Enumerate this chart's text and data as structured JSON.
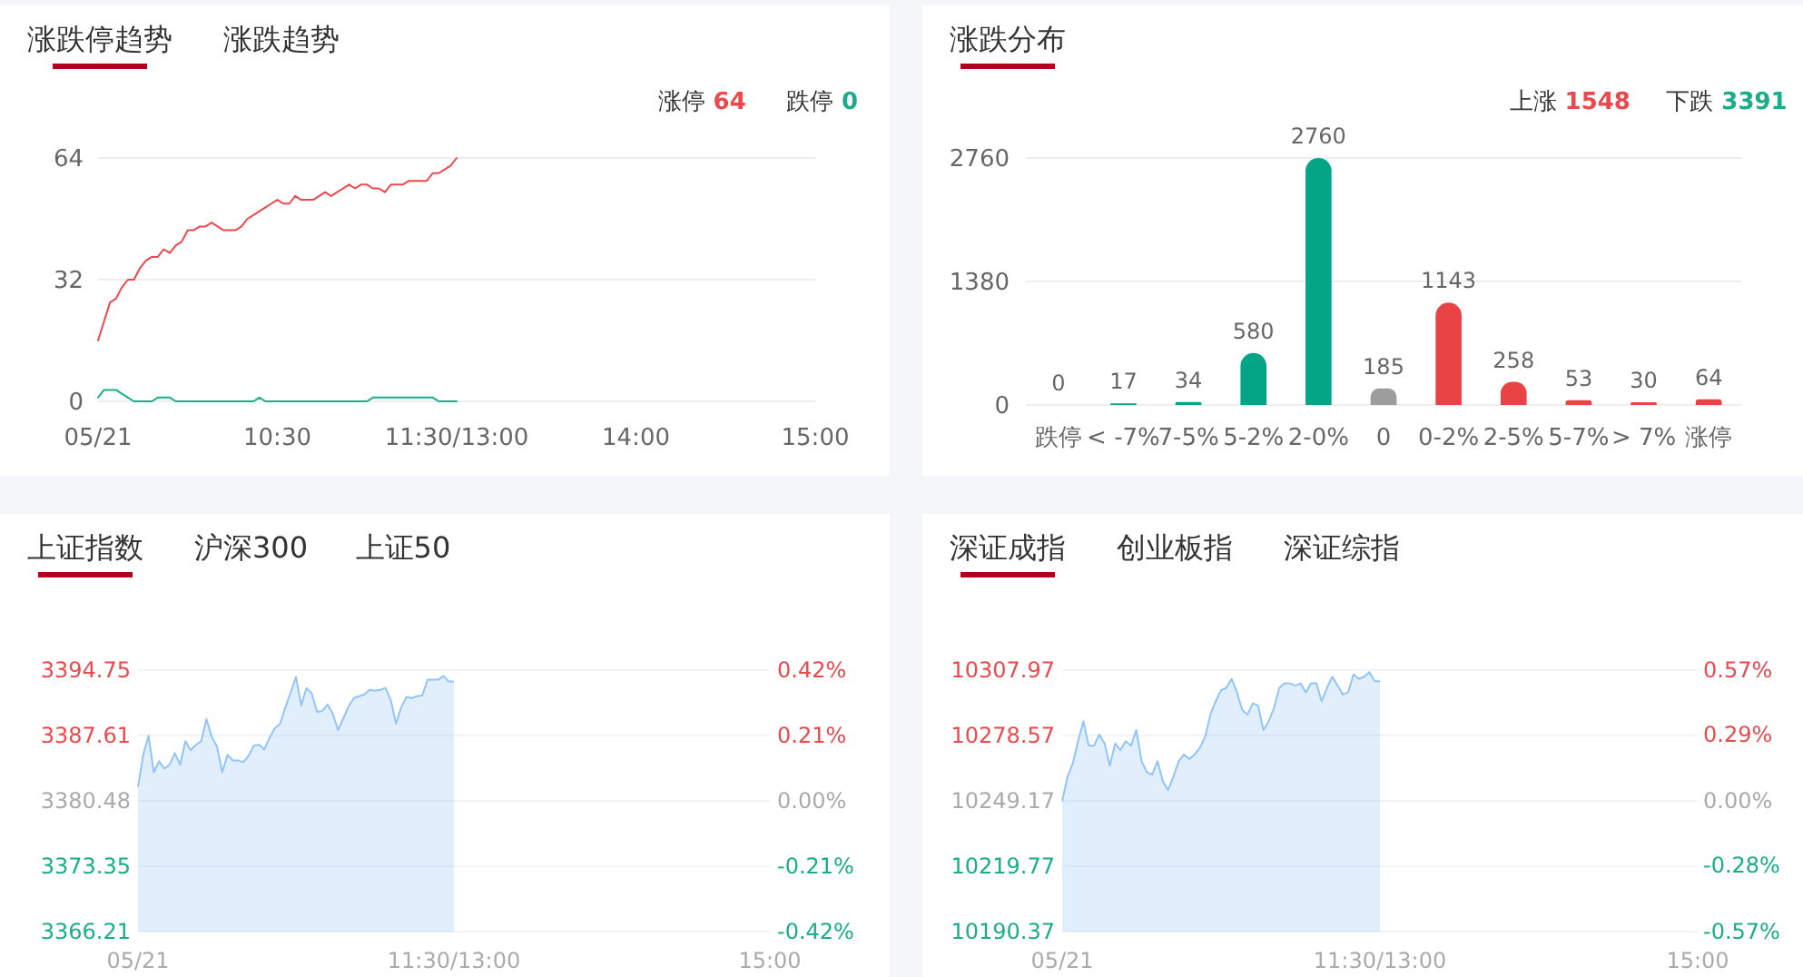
{
  "chart_data": [
    {
      "type": "line",
      "title": "涨跌停趋势",
      "annotations": [
        "涨跌趋势"
      ],
      "categories": [
        "05/21",
        null,
        null,
        null,
        null,
        null,
        null,
        null,
        null,
        null,
        null,
        null,
        null,
        null,
        null,
        null,
        null,
        null,
        null,
        null,
        null,
        null,
        null,
        null,
        null,
        null,
        null,
        null,
        null,
        null,
        "10:30",
        null,
        null,
        null,
        null,
        null,
        null,
        null,
        null,
        null,
        null,
        null,
        null,
        null,
        null,
        null,
        null,
        null,
        null,
        null,
        null,
        null,
        null,
        null,
        null,
        null,
        null,
        null,
        null,
        null,
        "11:30/13:00",
        null,
        null,
        null,
        null,
        null,
        null,
        null,
        null,
        null,
        null,
        null,
        null,
        null,
        null,
        null,
        null,
        null,
        null,
        null,
        null,
        null,
        null,
        null,
        null,
        null,
        null,
        null,
        null,
        null,
        "14:00",
        null,
        null,
        null,
        null,
        null,
        null,
        null,
        null,
        null,
        null,
        null,
        null,
        null,
        null,
        null,
        null,
        null,
        null,
        null,
        null,
        null,
        null,
        null,
        null,
        null,
        null,
        null,
        null,
        null,
        "15:00"
      ],
      "ylim": [
        0,
        64
      ],
      "yticks": [
        0,
        32,
        64
      ],
      "grid": "y",
      "legend": "top right",
      "series": [
        {
          "name": "涨停 64",
          "color": "#ee474c",
          "values": [
            16,
            21,
            26,
            27,
            30,
            32,
            32,
            35,
            37,
            38,
            38,
            40,
            39,
            41,
            42,
            45,
            45,
            46,
            46,
            47,
            46,
            45,
            45,
            45,
            46,
            48,
            49,
            50,
            51,
            52,
            53,
            52,
            52,
            54,
            53,
            53,
            53,
            54,
            55,
            54,
            55,
            56,
            57,
            56,
            57,
            57,
            56,
            56,
            55,
            57,
            57,
            57,
            58,
            58,
            58,
            58,
            60,
            60,
            61,
            62,
            64,
            null,
            null,
            null,
            null,
            null,
            null,
            null,
            null,
            null,
            null,
            null,
            null,
            null,
            null,
            null,
            null,
            null,
            null,
            null,
            null,
            null,
            null,
            null,
            null,
            null,
            null,
            null,
            null,
            null,
            null,
            null,
            null,
            null,
            null,
            null,
            null,
            null,
            null,
            null,
            null,
            null,
            null,
            null,
            null,
            null,
            null,
            null,
            null,
            null,
            null,
            null,
            null,
            null,
            null,
            null,
            null,
            null,
            null,
            null,
            null
          ]
        },
        {
          "name": "跌停 0",
          "color": "#1aad8a",
          "values": [
            1,
            3,
            3,
            3,
            2,
            1,
            0,
            0,
            0,
            0,
            1,
            1,
            1,
            0,
            0,
            0,
            0,
            0,
            0,
            0,
            0,
            0,
            0,
            0,
            0,
            0,
            0,
            1,
            0,
            0,
            0,
            0,
            0,
            0,
            0,
            0,
            0,
            0,
            0,
            0,
            0,
            0,
            0,
            0,
            0,
            0,
            1,
            1,
            1,
            1,
            1,
            1,
            1,
            1,
            1,
            1,
            1,
            0,
            0,
            0,
            0,
            null,
            null,
            null,
            null,
            null,
            null,
            null,
            null,
            null,
            null,
            null,
            null,
            null,
            null,
            null,
            null,
            null,
            null,
            null,
            null,
            null,
            null,
            null,
            null,
            null,
            null,
            null,
            null,
            null,
            null,
            null,
            null,
            null,
            null,
            null,
            null,
            null,
            null,
            null,
            null,
            null,
            null,
            null,
            null,
            null,
            null,
            null,
            null,
            null,
            null,
            null,
            null,
            null,
            null,
            null,
            null,
            null,
            null,
            null,
            null
          ]
        }
      ]
    },
    {
      "type": "bar",
      "title": "涨跌分布",
      "annotations": [
        "上涨 1548",
        "下跌 3391"
      ],
      "categories": [
        "跌停",
        "< -7%",
        "7-5%",
        "5-2%",
        "2-0%",
        "0",
        "0-2%",
        "2-5%",
        "5-7%",
        "> 7%",
        "涨停"
      ],
      "ylim": [
        0,
        2760
      ],
      "yticks": [
        0,
        1380,
        2760
      ],
      "grid": "y",
      "data_labels": true,
      "values": [
        0,
        17,
        34,
        580,
        2760,
        185,
        1143,
        258,
        53,
        30,
        64
      ],
      "colors": [
        "#04a586",
        "#04a586",
        "#04a586",
        "#04a586",
        "#04a586",
        "#9d9d9d",
        "#e84345",
        "#e84345",
        "#e84345",
        "#e84345",
        "#e84345"
      ]
    },
    {
      "type": "area",
      "title": "上证指数",
      "annotations": [
        "沪深300",
        "上证50"
      ],
      "categories": [
        "05/21",
        null,
        null,
        null,
        null,
        null,
        null,
        null,
        null,
        null,
        null,
        null,
        null,
        null,
        null,
        null,
        null,
        null,
        null,
        null,
        null,
        null,
        null,
        null,
        null,
        null,
        null,
        null,
        null,
        null,
        null,
        null,
        null,
        null,
        null,
        null,
        null,
        null,
        null,
        null,
        null,
        null,
        null,
        null,
        null,
        null,
        null,
        null,
        null,
        null,
        null,
        null,
        null,
        null,
        null,
        null,
        null,
        null,
        null,
        null,
        "11:30/13:00",
        null,
        null,
        null,
        null,
        null,
        null,
        null,
        null,
        null,
        null,
        null,
        null,
        null,
        null,
        null,
        null,
        null,
        null,
        null,
        null,
        null,
        null,
        null,
        null,
        null,
        null,
        null,
        null,
        null,
        null,
        null,
        null,
        null,
        null,
        null,
        null,
        null,
        null,
        null,
        null,
        null,
        null,
        null,
        null,
        null,
        null,
        null,
        null,
        null,
        null,
        null,
        null,
        null,
        null,
        null,
        null,
        null,
        null,
        null,
        "15:00"
      ],
      "ylim": [
        3366.21,
        3394.75
      ],
      "yticks": [
        3366.21,
        3373.35,
        3380.48,
        3387.61,
        3394.75
      ],
      "y2lim": [
        -0.42,
        0.42
      ],
      "y2ticks": [
        {
          "value": -0.42,
          "label": "-0.42%"
        },
        {
          "value": -0.21,
          "label": "-0.21%"
        },
        {
          "value": 0,
          "label": "0.00%"
        },
        {
          "value": 0.21,
          "label": "0.21%"
        },
        {
          "value": 0.42,
          "label": "0.42%"
        }
      ],
      "grid": "y",
      "series": [
        {
          "color": "#93c4f8",
          "values": [
            3382.0,
            3385.5,
            3387.6,
            3383.6,
            3384.8,
            3384.0,
            3384.4,
            3385.7,
            3384.4,
            3387.0,
            3386.0,
            3386.6,
            3387.0,
            3389.4,
            3387.5,
            3386.4,
            3383.6,
            3385.5,
            3384.9,
            3384.9,
            3384.7,
            3385.4,
            3386.5,
            3386.6,
            3386.1,
            3387.4,
            3388.4,
            3388.9,
            3390.7,
            3392.3,
            3394.0,
            3390.9,
            3392.8,
            3392.2,
            3390.2,
            3390.3,
            3391.0,
            3390.0,
            3388.2,
            3389.5,
            3390.8,
            3391.7,
            3391.9,
            3392.1,
            3392.6,
            3392.5,
            3392.6,
            3392.8,
            3391.5,
            3388.9,
            3390.7,
            3391.8,
            3391.7,
            3391.9,
            3392.0,
            3393.7,
            3393.7,
            3393.7,
            3394.1,
            3393.5,
            3393.5,
            null,
            null,
            null,
            null,
            null,
            null,
            null,
            null,
            null,
            null,
            null,
            null,
            null,
            null,
            null,
            null,
            null,
            null,
            null,
            null,
            null,
            null,
            null,
            null,
            null,
            null,
            null,
            null,
            null,
            null,
            null,
            null,
            null,
            null,
            null,
            null,
            null,
            null,
            null,
            null,
            null,
            null,
            null,
            null,
            null,
            null,
            null,
            null,
            null,
            null,
            null,
            null,
            null,
            null,
            null,
            null,
            null,
            null,
            null,
            null
          ]
        }
      ]
    },
    {
      "type": "area",
      "title": "深证成指",
      "annotations": [
        "创业板指",
        "深证综指"
      ],
      "categories": [
        "05/21",
        null,
        null,
        null,
        null,
        null,
        null,
        null,
        null,
        null,
        null,
        null,
        null,
        null,
        null,
        null,
        null,
        null,
        null,
        null,
        null,
        null,
        null,
        null,
        null,
        null,
        null,
        null,
        null,
        null,
        null,
        null,
        null,
        null,
        null,
        null,
        null,
        null,
        null,
        null,
        null,
        null,
        null,
        null,
        null,
        null,
        null,
        null,
        null,
        null,
        null,
        null,
        null,
        null,
        null,
        null,
        null,
        null,
        null,
        null,
        "11:30/13:00",
        null,
        null,
        null,
        null,
        null,
        null,
        null,
        null,
        null,
        null,
        null,
        null,
        null,
        null,
        null,
        null,
        null,
        null,
        null,
        null,
        null,
        null,
        null,
        null,
        null,
        null,
        null,
        null,
        null,
        null,
        null,
        null,
        null,
        null,
        null,
        null,
        null,
        null,
        null,
        null,
        null,
        null,
        null,
        null,
        null,
        null,
        null,
        null,
        null,
        null,
        null,
        null,
        null,
        null,
        null,
        null,
        null,
        null,
        null,
        "15:00"
      ],
      "ylim": [
        10190.37,
        10307.97
      ],
      "yticks": [
        10190.37,
        10219.77,
        10249.17,
        10278.57,
        10307.97
      ],
      "y2lim": [
        -0.57,
        0.57
      ],
      "y2ticks": [
        {
          "value": -0.57,
          "label": "-0.57%"
        },
        {
          "value": -0.28,
          "label": "-0.28%"
        },
        {
          "value": 0,
          "label": "0.00%"
        },
        {
          "value": 0.29,
          "label": "0.29%"
        },
        {
          "value": 0.57,
          "label": "0.57%"
        }
      ],
      "grid": "y",
      "series": [
        {
          "color": "#93c4f8",
          "values": [
            10249,
            10260,
            10266,
            10276,
            10285,
            10274,
            10274,
            10279,
            10275,
            10265,
            10275,
            10272,
            10276,
            10274,
            10281,
            10267,
            10262,
            10261,
            10267,
            10258,
            10254,
            10260,
            10267,
            10270,
            10268,
            10270,
            10273,
            10278,
            10288,
            10294,
            10299,
            10300,
            10304,
            10298,
            10290,
            10288,
            10293,
            10292,
            10281,
            10285,
            10291,
            10300,
            10302,
            10302,
            10301,
            10302,
            10298,
            10302,
            10302,
            10294,
            10300,
            10305,
            10301,
            10297,
            10298,
            10306,
            10304,
            10305,
            10307,
            10303,
            10303,
            null,
            null,
            null,
            null,
            null,
            null,
            null,
            null,
            null,
            null,
            null,
            null,
            null,
            null,
            null,
            null,
            null,
            null,
            null,
            null,
            null,
            null,
            null,
            null,
            null,
            null,
            null,
            null,
            null,
            null,
            null,
            null,
            null,
            null,
            null,
            null,
            null,
            null,
            null,
            null,
            null,
            null,
            null,
            null,
            null,
            null,
            null,
            null,
            null,
            null,
            null,
            null,
            null,
            null,
            null,
            null,
            null,
            null,
            null,
            null
          ]
        }
      ]
    }
  ]
}
